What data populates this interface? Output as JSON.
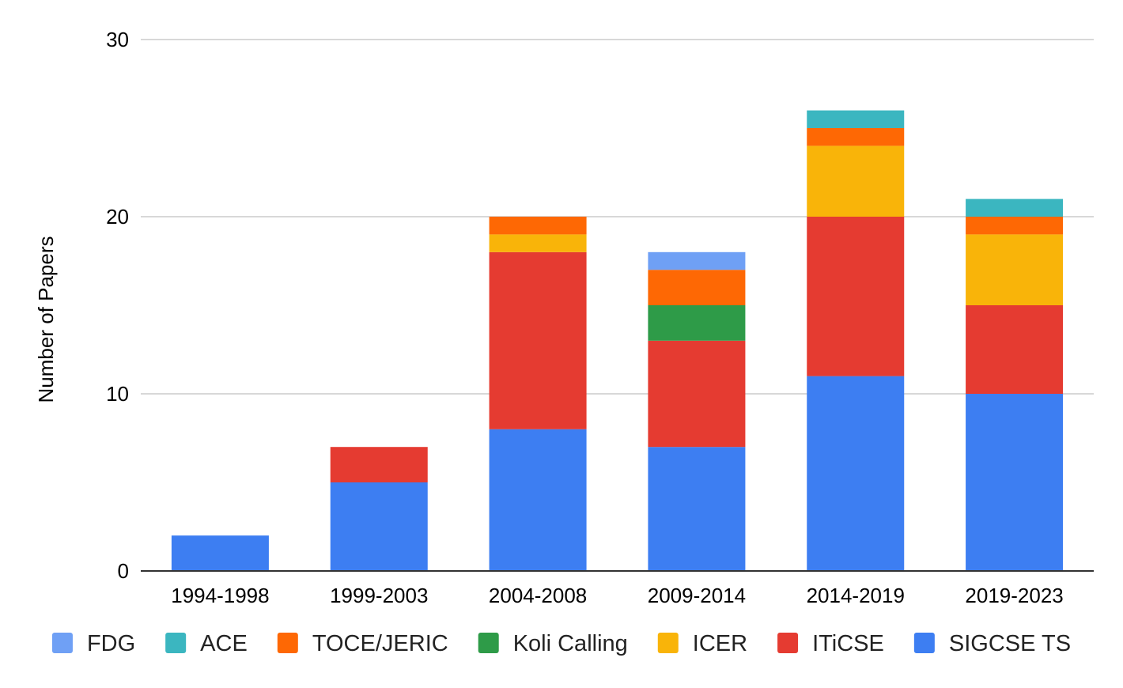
{
  "chart_data": {
    "type": "bar",
    "stacked": true,
    "title": "",
    "xlabel": "",
    "ylabel": "Number of Papers",
    "ylim": [
      0,
      30
    ],
    "yticks": [
      0,
      10,
      20,
      30
    ],
    "grid": true,
    "legend_position": "bottom",
    "categories": [
      "1994-1998",
      "1999-2003",
      "2004-2008",
      "2009-2014",
      "2014-2019",
      "2019-2023"
    ],
    "series": [
      {
        "name": "SIGCSE TS",
        "color": "#3d7ef2",
        "values": [
          2,
          5,
          8,
          7,
          11,
          10
        ]
      },
      {
        "name": "ITiCSE",
        "color": "#e53b31",
        "values": [
          0,
          2,
          10,
          6,
          9,
          5
        ]
      },
      {
        "name": "ICER",
        "color": "#f9b409",
        "values": [
          0,
          0,
          1,
          0,
          4,
          4
        ]
      },
      {
        "name": "Koli Calling",
        "color": "#2e9b48",
        "values": [
          0,
          0,
          0,
          2,
          0,
          0
        ]
      },
      {
        "name": "TOCE/JERIC",
        "color": "#fe6804",
        "values": [
          0,
          0,
          1,
          2,
          1,
          1
        ]
      },
      {
        "name": "ACE",
        "color": "#3bb6c0",
        "values": [
          0,
          0,
          0,
          0,
          1,
          1
        ]
      },
      {
        "name": "FDG",
        "color": "#6fa0f5",
        "values": [
          0,
          0,
          0,
          1,
          0,
          0
        ]
      }
    ],
    "legend_order": [
      "FDG",
      "ACE",
      "TOCE/JERIC",
      "Koli Calling",
      "ICER",
      "ITiCSE",
      "SIGCSE TS"
    ]
  }
}
